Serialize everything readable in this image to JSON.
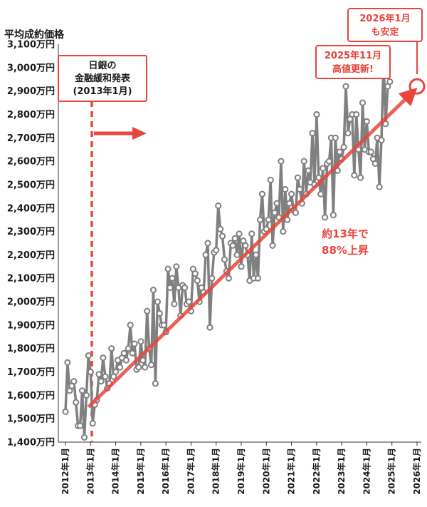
{
  "chart_data": {
    "type": "line",
    "ylabel": "平均成約価格",
    "yticks": [
      "1,400万円",
      "1,500万円",
      "1,600万円",
      "1,700万円",
      "1,800万円",
      "1,900万円",
      "2,000万円",
      "2,100万円",
      "2,200万円",
      "2,300万円",
      "2,400万円",
      "2,500万円",
      "2,600万円",
      "2,700万円",
      "2,800万円",
      "2,900万円",
      "3,000万円",
      "3,100万円"
    ],
    "ylim": [
      1400,
      3100
    ],
    "xticks": [
      "2012年1月",
      "2013年1月",
      "2014年1月",
      "2015年1月",
      "2016年1月",
      "2017年1月",
      "2018年1月",
      "2019年1月",
      "2020年1月",
      "2021年1月",
      "2022年1月",
      "2023年1月",
      "2024年1月",
      "2025年1月",
      "2026年1月"
    ],
    "x_start": "2012年1月",
    "grid": false,
    "colors": {
      "line": "#808080",
      "accent": "#e8453c",
      "text": "#1a1a1a"
    },
    "series": [
      {
        "values": [
          1530,
          1740,
          1620,
          1640,
          1660,
          1570,
          1470,
          1470,
          1620,
          1420,
          1600,
          1770,
          1700,
          1480,
          1560,
          1580,
          1690,
          1660,
          1760,
          1680,
          1630,
          1650,
          1800,
          1680,
          1700,
          1750,
          1720,
          1760,
          1780,
          1750,
          1800,
          1900,
          1780,
          1820,
          1710,
          1720,
          1830,
          1750,
          1720,
          1960,
          1800,
          1730,
          2050,
          1650,
          2000,
          1950,
          1900,
          1900,
          1870,
          2140,
          2060,
          2100,
          1990,
          2150,
          2060,
          1940,
          2070,
          2060,
          1990,
          2000,
          1960,
          2140,
          2120,
          2090,
          2000,
          2060,
          2040,
          2200,
          2250,
          1890,
          2100,
          2210,
          2220,
          2410,
          2310,
          2280,
          2180,
          2130,
          2100,
          2250,
          2240,
          2270,
          2200,
          2290,
          2150,
          2260,
          2240,
          2200,
          2090,
          2290,
          2100,
          2200,
          2100,
          2350,
          2460,
          2300,
          2310,
          2350,
          2520,
          2240,
          2380,
          2420,
          2360,
          2600,
          2300,
          2480,
          2350,
          2420,
          2460,
          2390,
          2380,
          2530,
          2480,
          2420,
          2600,
          2460,
          2560,
          2510,
          2720,
          2500,
          2800,
          2530,
          2460,
          2570,
          2360,
          2590,
          2600,
          2700,
          2370,
          2700,
          2560,
          2640,
          2610,
          2660,
          2920,
          2720,
          2780,
          2800,
          2540,
          2800,
          2650,
          2530,
          2850,
          2650,
          2770,
          2640,
          2640,
          2610,
          2590,
          2700,
          2490,
          2690,
          3030,
          2760,
          2920,
          2940
        ]
      }
    ],
    "trend": {
      "from": [
        "2012年12月",
        1550
      ],
      "to": [
        "2026年1月",
        2920
      ]
    },
    "annotations": {
      "boj_line1": "日銀の",
      "boj_line2": "金融緩和発表",
      "boj_line3": "(2013年1月)",
      "trend_line1": "約13年で",
      "trend_line2": "88%上昇",
      "callout1_line1": "2026年1月",
      "callout1_line2": "も安定",
      "callout2_line1": "2025年11月",
      "callout2_line2": "高値更新!"
    }
  }
}
